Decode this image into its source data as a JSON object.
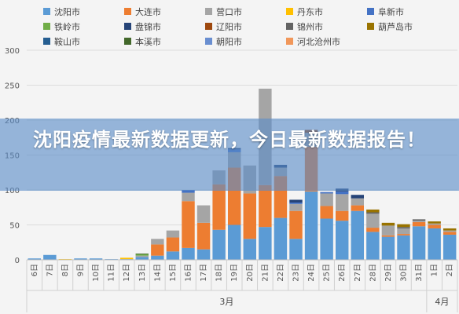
{
  "headline": "沈阳疫情最新数据更新，今日最新数据报告！",
  "chart_data": {
    "type": "bar",
    "stacked": true,
    "title": "",
    "xlabel": "",
    "ylabel": "",
    "ylim": [
      0,
      300
    ],
    "yticks": [
      0,
      50,
      100,
      150,
      200,
      250,
      300
    ],
    "grid": true,
    "legend_position": "top",
    "categories": [
      "6日",
      "7日",
      "8日",
      "9日",
      "10日",
      "11日",
      "12日",
      "13日",
      "14日",
      "15日",
      "16日",
      "17日",
      "18日",
      "19日",
      "20日",
      "21日",
      "22日",
      "23日",
      "24日",
      "25日",
      "26日",
      "27日",
      "28日",
      "29日",
      "30日",
      "31日",
      "1日",
      "2日"
    ],
    "month_groups": [
      {
        "label": "3月",
        "start": 0,
        "end": 25
      },
      {
        "label": "4月",
        "start": 26,
        "end": 27
      }
    ],
    "series": [
      {
        "name": "沈阳市",
        "color": "#5b9bd5",
        "values": [
          2,
          7,
          0,
          2,
          2,
          1,
          1,
          4,
          6,
          12,
          17,
          15,
          43,
          50,
          30,
          47,
          60,
          30,
          98,
          59,
          56,
          70,
          40,
          33,
          35,
          48,
          45,
          36
        ]
      },
      {
        "name": "大连市",
        "color": "#ed7d31",
        "values": [
          0,
          0,
          0,
          0,
          0,
          0,
          0,
          0,
          16,
          20,
          67,
          38,
          65,
          82,
          65,
          60,
          60,
          40,
          64,
          18,
          14,
          8,
          6,
          2,
          2,
          6,
          5,
          4
        ]
      },
      {
        "name": "营口市",
        "color": "#a5a5a5",
        "values": [
          0,
          0,
          0,
          0,
          0,
          0,
          0,
          2,
          8,
          10,
          12,
          25,
          20,
          22,
          40,
          138,
          12,
          10,
          20,
          18,
          24,
          10,
          20,
          14,
          8,
          2,
          2,
          2
        ]
      },
      {
        "name": "丹东市",
        "color": "#ffc000",
        "values": [
          0,
          0,
          1,
          0,
          0,
          0,
          2,
          0,
          0,
          0,
          0,
          0,
          0,
          0,
          0,
          0,
          0,
          0,
          0,
          0,
          0,
          0,
          0,
          0,
          0,
          0,
          0,
          0
        ]
      },
      {
        "name": "阜新市",
        "color": "#4472c4",
        "values": [
          0,
          0,
          0,
          0,
          0,
          0,
          0,
          0,
          0,
          0,
          4,
          0,
          0,
          4,
          0,
          0,
          0,
          2,
          0,
          2,
          4,
          0,
          0,
          0,
          0,
          0,
          0,
          0
        ]
      },
      {
        "name": "铁岭市",
        "color": "#70ad47",
        "values": [
          0,
          0,
          0,
          0,
          0,
          0,
          0,
          2,
          0,
          0,
          0,
          0,
          0,
          0,
          0,
          0,
          0,
          0,
          0,
          0,
          0,
          0,
          0,
          0,
          0,
          0,
          0,
          0
        ]
      },
      {
        "name": "盘锦市",
        "color": "#264478",
        "values": [
          0,
          0,
          0,
          0,
          0,
          0,
          0,
          0,
          0,
          0,
          0,
          0,
          0,
          2,
          0,
          0,
          4,
          4,
          0,
          0,
          4,
          5,
          0,
          0,
          0,
          0,
          0,
          0
        ]
      },
      {
        "name": "辽阳市",
        "color": "#9e480e",
        "values": [
          0,
          0,
          0,
          0,
          0,
          0,
          0,
          0,
          0,
          0,
          0,
          0,
          0,
          0,
          0,
          0,
          0,
          0,
          4,
          0,
          0,
          0,
          0,
          0,
          0,
          0,
          0,
          0
        ]
      },
      {
        "name": "锦州市",
        "color": "#636363",
        "values": [
          0,
          0,
          0,
          0,
          0,
          0,
          0,
          0,
          0,
          0,
          0,
          0,
          0,
          0,
          0,
          0,
          0,
          0,
          0,
          0,
          0,
          0,
          2,
          0,
          2,
          2,
          0,
          0
        ]
      },
      {
        "name": "葫芦岛市",
        "color": "#997300",
        "values": [
          0,
          0,
          0,
          0,
          0,
          0,
          0,
          0,
          0,
          0,
          0,
          0,
          0,
          0,
          0,
          0,
          0,
          0,
          0,
          0,
          0,
          0,
          4,
          4,
          4,
          0,
          3,
          3
        ]
      },
      {
        "name": "鞍山市",
        "color": "#255e91",
        "values": [
          0,
          0,
          0,
          0,
          0,
          0,
          0,
          0,
          0,
          0,
          0,
          0,
          0,
          0,
          0,
          0,
          0,
          0,
          0,
          0,
          0,
          0,
          0,
          0,
          0,
          0,
          0,
          0
        ]
      },
      {
        "name": "本溪市",
        "color": "#43682b",
        "values": [
          0,
          0,
          0,
          0,
          0,
          0,
          0,
          1,
          0,
          0,
          0,
          0,
          0,
          0,
          0,
          0,
          0,
          0,
          0,
          0,
          0,
          0,
          0,
          0,
          0,
          0,
          0,
          0
        ]
      },
      {
        "name": "朝阳市",
        "color": "#698ed0",
        "values": [
          0,
          0,
          0,
          0,
          0,
          0,
          0,
          0,
          0,
          0,
          0,
          0,
          0,
          0,
          0,
          0,
          0,
          0,
          0,
          0,
          0,
          0,
          0,
          0,
          0,
          0,
          0,
          0
        ]
      },
      {
        "name": "河北沧州市",
        "color": "#f1975a",
        "values": [
          0,
          0,
          0,
          0,
          0,
          0,
          0,
          0,
          0,
          0,
          0,
          0,
          0,
          0,
          0,
          0,
          0,
          0,
          0,
          0,
          0,
          0,
          0,
          0,
          0,
          0,
          0,
          0
        ]
      }
    ]
  }
}
